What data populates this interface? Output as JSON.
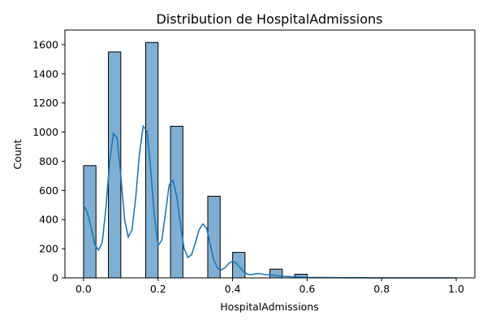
{
  "chart_data": {
    "type": "bar",
    "title": "Distribution de HospitalAdmissions",
    "xlabel": "HospitalAdmissions",
    "ylabel": "Count",
    "xlim": [
      -0.05,
      1.05
    ],
    "ylim": [
      0,
      1700
    ],
    "xticks": [
      "0.0",
      "0.2",
      "0.4",
      "0.6",
      "0.8",
      "1.0"
    ],
    "yticks": [
      "0",
      "200",
      "400",
      "600",
      "800",
      "1000",
      "1200",
      "1400",
      "1600"
    ],
    "bin_width": 0.0333,
    "bins": [
      {
        "x0": 0.0,
        "count": 770
      },
      {
        "x0": 0.0667,
        "count": 1550
      },
      {
        "x0": 0.1667,
        "count": 1615
      },
      {
        "x0": 0.2333,
        "count": 1040
      },
      {
        "x0": 0.3333,
        "count": 560
      },
      {
        "x0": 0.4,
        "count": 175
      },
      {
        "x0": 0.5,
        "count": 60
      },
      {
        "x0": 0.5667,
        "count": 25
      }
    ],
    "kde": {
      "x": [
        0.0,
        0.01,
        0.02,
        0.03,
        0.04,
        0.05,
        0.06,
        0.07,
        0.08,
        0.09,
        0.1,
        0.11,
        0.12,
        0.13,
        0.14,
        0.15,
        0.16,
        0.17,
        0.18,
        0.19,
        0.2,
        0.21,
        0.22,
        0.23,
        0.24,
        0.25,
        0.26,
        0.27,
        0.28,
        0.29,
        0.3,
        0.31,
        0.32,
        0.33,
        0.34,
        0.35,
        0.36,
        0.37,
        0.38,
        0.39,
        0.4,
        0.41,
        0.42,
        0.43,
        0.44,
        0.45,
        0.46,
        0.47,
        0.48,
        0.5,
        0.52,
        0.54,
        0.56,
        0.58,
        0.6,
        0.65,
        0.7,
        0.8,
        0.9,
        1.0
      ],
      "y": [
        500,
        450,
        350,
        230,
        190,
        240,
        480,
        800,
        990,
        960,
        700,
        400,
        280,
        330,
        550,
        850,
        1040,
        1010,
        750,
        420,
        220,
        260,
        450,
        640,
        670,
        560,
        370,
        200,
        140,
        160,
        240,
        330,
        370,
        340,
        230,
        120,
        65,
        55,
        70,
        100,
        115,
        100,
        70,
        40,
        25,
        22,
        28,
        30,
        25,
        20,
        15,
        10,
        8,
        5,
        3,
        2,
        1,
        0.5,
        0.3,
        0.1
      ]
    },
    "colors": {
      "bar_fill": "#7fafd3",
      "bar_edge": "#000000",
      "kde_line": "#1f77b4"
    },
    "grid": false
  }
}
